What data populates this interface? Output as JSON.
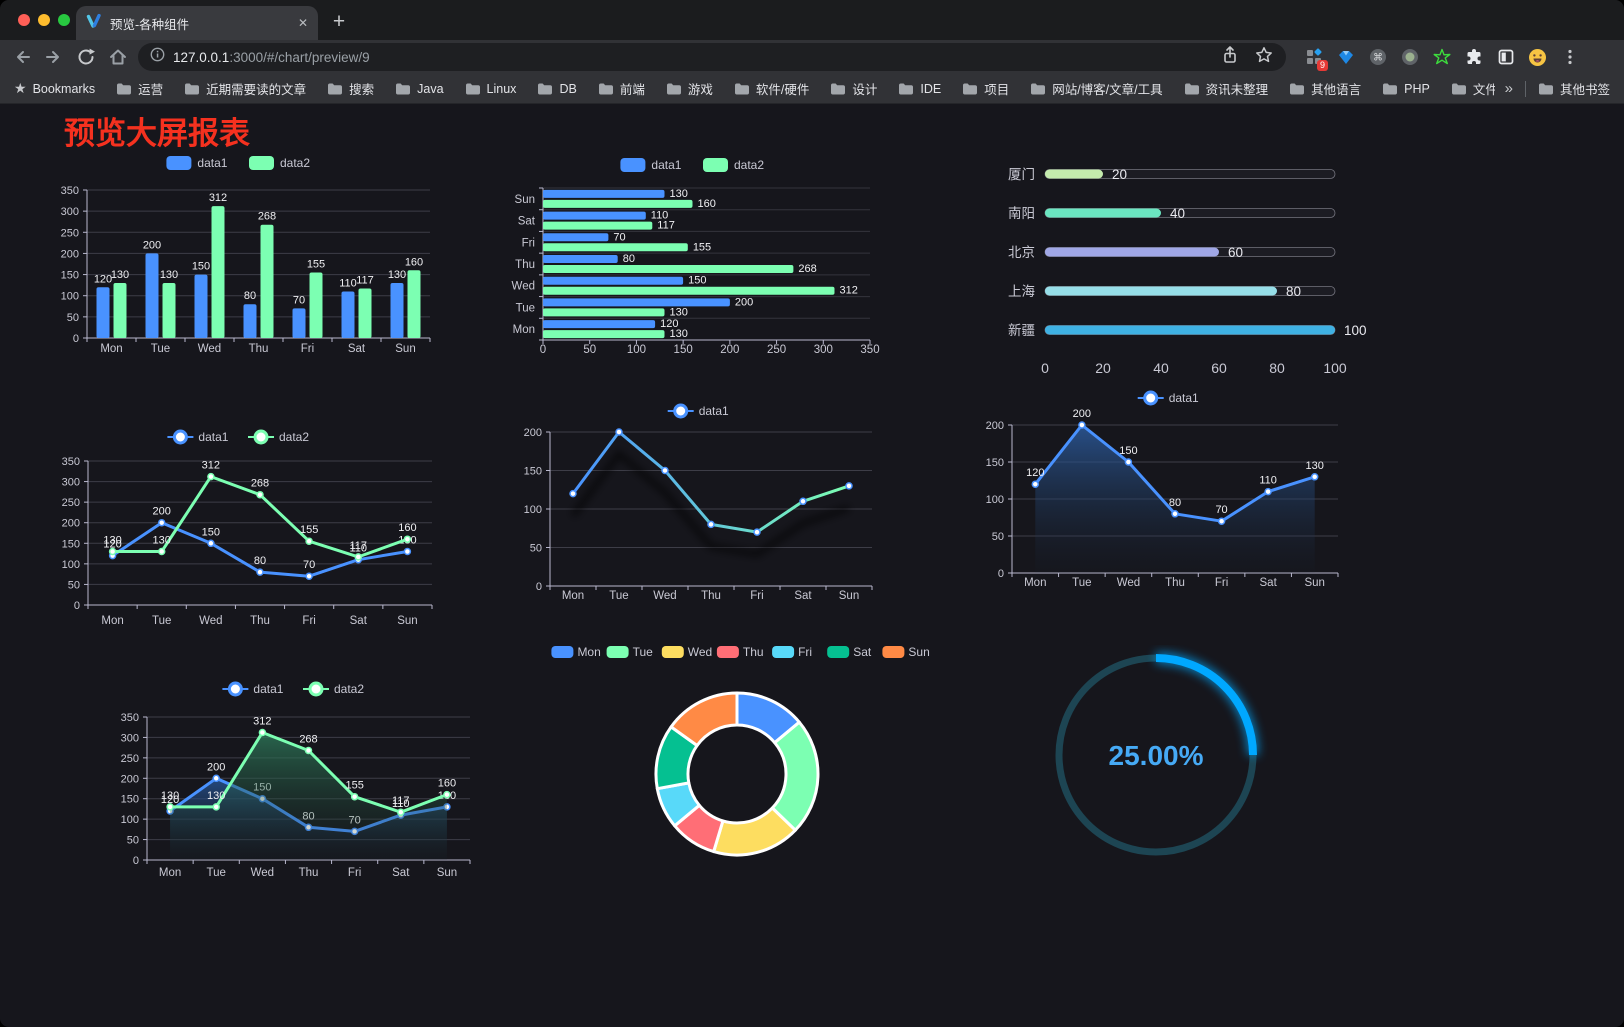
{
  "browser": {
    "tab_title": "预览-各种组件",
    "tab_close_label": "✕",
    "new_tab_label": "+",
    "url_host": "127.0.0.1",
    "url_rest": ":3000/#/chart/preview/9",
    "extension_badge": "9",
    "bookmarks_label": "Bookmarks",
    "bookmarks": [
      "运营",
      "近期需要读的文章",
      "搜索",
      "Java",
      "Linux",
      "DB",
      "前端",
      "游戏",
      "软件/硬件",
      "设计",
      "IDE",
      "项目",
      "网站/博客/文章/工具",
      "资讯未整理",
      "其他语言",
      "PHP",
      "文件服务器"
    ],
    "bookmarks_overflow": "»",
    "other_bookmarks": "其他书签"
  },
  "page": {
    "title": "预览大屏报表",
    "title_color": "#f5311f",
    "background": "#16161c"
  },
  "chart_data": [
    {
      "id": "bar-grouped",
      "type": "bar",
      "categories": [
        "Mon",
        "Tue",
        "Wed",
        "Thu",
        "Fri",
        "Sat",
        "Sun"
      ],
      "series": [
        {
          "name": "data1",
          "color": "#4992ff",
          "values": [
            120,
            200,
            150,
            80,
            70,
            110,
            130
          ]
        },
        {
          "name": "data2",
          "color": "#7cffb2",
          "values": [
            130,
            130,
            312,
            268,
            155,
            117,
            160
          ]
        }
      ],
      "ylim": [
        0,
        350
      ],
      "ytick_step": 50,
      "grid": true,
      "legend_position": "top"
    },
    {
      "id": "bar-horizontal",
      "type": "hbar",
      "categories": [
        "Mon",
        "Tue",
        "Wed",
        "Thu",
        "Fri",
        "Sat",
        "Sun"
      ],
      "series": [
        {
          "name": "data1",
          "color": "#4992ff",
          "values": [
            120,
            200,
            150,
            80,
            70,
            110,
            130
          ]
        },
        {
          "name": "data2",
          "color": "#7cffb2",
          "values": [
            130,
            130,
            312,
            268,
            155,
            117,
            160
          ]
        }
      ],
      "xlim": [
        0,
        350
      ],
      "xtick_step": 50,
      "legend_position": "top"
    },
    {
      "id": "progress-bars",
      "type": "progress",
      "items": [
        {
          "label": "厦门",
          "value": 20,
          "color": "#c4ebad"
        },
        {
          "label": "南阳",
          "value": 40,
          "color": "#6be6c1"
        },
        {
          "label": "北京",
          "value": 60,
          "color": "#a0a7e6"
        },
        {
          "label": "上海",
          "value": 80,
          "color": "#96dee8"
        },
        {
          "label": "新疆",
          "value": 100,
          "color": "#3fb1e3"
        }
      ],
      "xlim": [
        0,
        100
      ],
      "xticks": [
        0,
        20,
        40,
        60,
        80,
        100
      ]
    },
    {
      "id": "line-two",
      "type": "line",
      "labels": true,
      "categories": [
        "Mon",
        "Tue",
        "Wed",
        "Thu",
        "Fri",
        "Sat",
        "Sun"
      ],
      "series": [
        {
          "name": "data1",
          "color": "#4992ff",
          "values": [
            120,
            200,
            150,
            80,
            70,
            110,
            130
          ]
        },
        {
          "name": "data2",
          "color": "#7cffb2",
          "values": [
            130,
            130,
            312,
            268,
            155,
            117,
            160
          ]
        }
      ],
      "ylim": [
        0,
        350
      ],
      "ytick_step": 50,
      "legend_position": "top"
    },
    {
      "id": "line-gradient",
      "type": "line",
      "labels": false,
      "shadow": true,
      "categories": [
        "Mon",
        "Tue",
        "Wed",
        "Thu",
        "Fri",
        "Sat",
        "Sun"
      ],
      "series": [
        {
          "name": "data1",
          "color_gradient": [
            "#4992ff",
            "#7cffb2"
          ],
          "values": [
            120,
            200,
            150,
            80,
            70,
            110,
            130
          ]
        }
      ],
      "ylim": [
        0,
        200
      ],
      "ytick_step": 50,
      "legend_position": "top"
    },
    {
      "id": "line-area",
      "type": "line",
      "labels": true,
      "categories": [
        "Mon",
        "Tue",
        "Wed",
        "Thu",
        "Fri",
        "Sat",
        "Sun"
      ],
      "series": [
        {
          "name": "data1",
          "color": "#4992ff",
          "values": [
            120,
            200,
            150,
            80,
            70,
            110,
            130
          ],
          "area": [
            "rgba(45,95,165,0.8)",
            "rgba(25,40,60,0.05)"
          ]
        }
      ],
      "ylim": [
        0,
        200
      ],
      "ytick_step": 50,
      "legend_position": "top"
    },
    {
      "id": "line-area-two",
      "type": "line",
      "labels": true,
      "categories": [
        "Mon",
        "Tue",
        "Wed",
        "Thu",
        "Fri",
        "Sat",
        "Sun"
      ],
      "series": [
        {
          "name": "data1",
          "color": "#4992ff",
          "values": [
            120,
            200,
            150,
            80,
            70,
            110,
            130
          ],
          "area": [
            "rgba(40,90,160,0.75)",
            "rgba(25,40,60,0.05)"
          ]
        },
        {
          "name": "data2",
          "color": "#7cffb2",
          "values": [
            130,
            130,
            312,
            268,
            155,
            117,
            160
          ],
          "area": [
            "rgba(47,128,94,0.75)",
            "rgba(25,45,38,0.05)"
          ]
        }
      ],
      "ylim": [
        0,
        350
      ],
      "ytick_step": 50,
      "legend_position": "top"
    },
    {
      "id": "pie-donut",
      "type": "pie",
      "slices": [
        {
          "label": "Mon",
          "value": 120,
          "color": "#4992ff"
        },
        {
          "label": "Tue",
          "value": 200,
          "color": "#7cffb2"
        },
        {
          "label": "Wed",
          "value": 150,
          "color": "#fddd60"
        },
        {
          "label": "Thu",
          "value": 80,
          "color": "#ff6e76"
        },
        {
          "label": "Fri",
          "value": 70,
          "color": "#58d9f9"
        },
        {
          "label": "Sat",
          "value": 110,
          "color": "#05c091"
        },
        {
          "label": "Sun",
          "value": 130,
          "color": "#ff8a45"
        }
      ],
      "legend_position": "top"
    },
    {
      "id": "gauge",
      "type": "gauge",
      "percent": 25,
      "label": "25.00%",
      "arc_color": "#00a8ff",
      "track_color": "#1d4553",
      "label_color": "#46aaf5"
    }
  ]
}
